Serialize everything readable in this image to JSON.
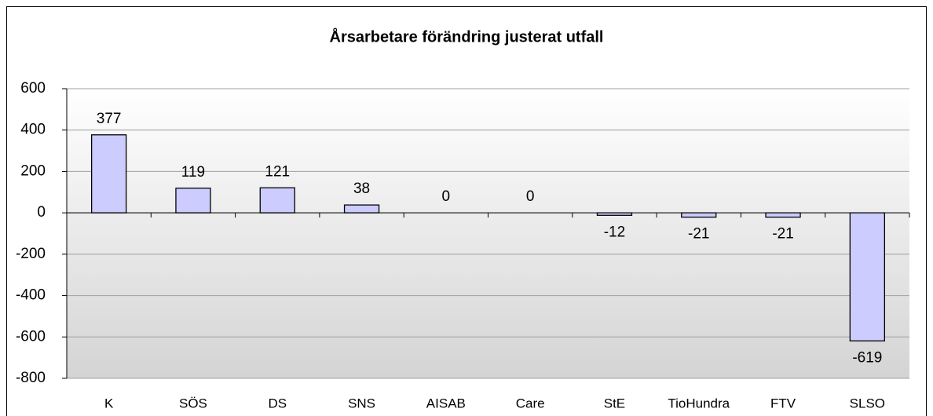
{
  "chart_data": {
    "type": "bar",
    "title": "Årsarbetare förändring justerat utfall",
    "categories": [
      "K",
      "SÖS",
      "DS",
      "SNS",
      "AISAB",
      "Care",
      "StE",
      "TioHundra",
      "FTV",
      "SLSO"
    ],
    "values": [
      377,
      119,
      121,
      38,
      0,
      0,
      -12,
      -21,
      -21,
      -619
    ],
    "color": "#ccccff",
    "ylim": [
      -800,
      600
    ],
    "yticks": [
      -800,
      -600,
      -400,
      -200,
      0,
      200,
      400,
      600
    ],
    "grid": true
  }
}
